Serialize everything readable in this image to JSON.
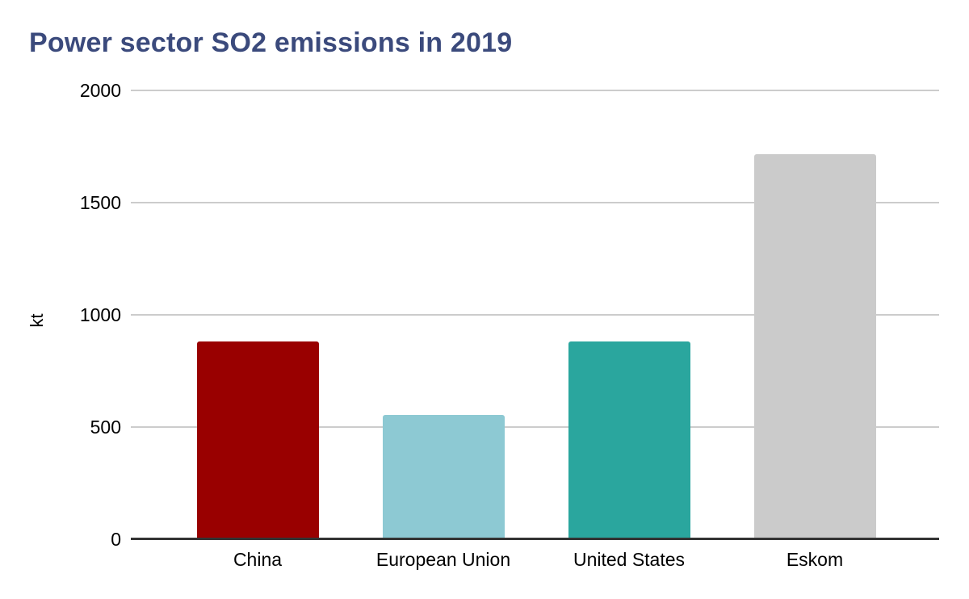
{
  "chart_data": {
    "type": "bar",
    "title": "Power sector SO2 emissions in 2019",
    "xlabel": "",
    "ylabel": "kt",
    "categories": [
      "China",
      "European Union",
      "United States",
      "Eskom"
    ],
    "values": [
      880,
      555,
      880,
      1715
    ],
    "ylim": [
      0,
      2000
    ],
    "yticks": [
      0,
      500,
      1000,
      1500,
      2000
    ],
    "grid": true,
    "legend_position": "none",
    "colors": {
      "title": "#3b4a7c",
      "bars": [
        "#990000",
        "#8dc9d3",
        "#2aa69e",
        "#cbcbcb"
      ],
      "gridline": "#cccccc",
      "axis_line": "#333333",
      "tick_labels": "#000000",
      "background": "#ffffff"
    }
  }
}
